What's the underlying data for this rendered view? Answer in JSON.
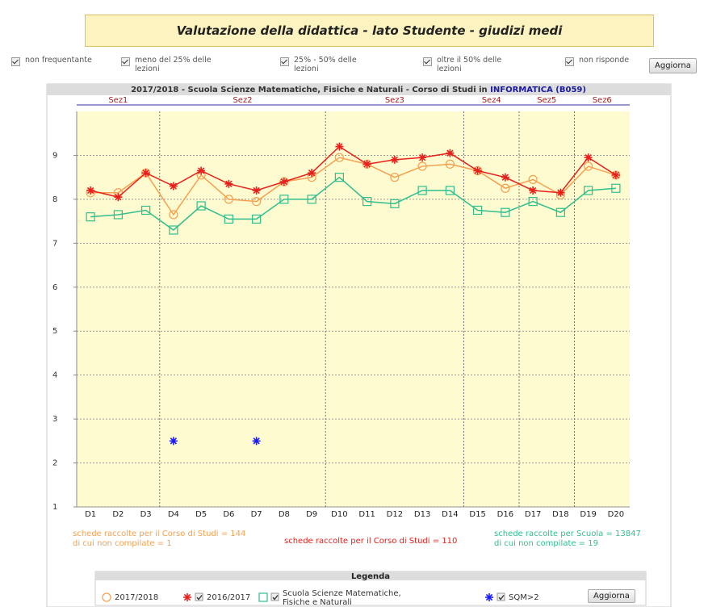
{
  "header": {
    "title": "Valutazione della didattica - lato Studente - giudizi medi"
  },
  "filters": [
    "non frequentante",
    "meno del 25% delle lezioni",
    "25% - 50% delle lezioni",
    "oltre il 50% delle lezioni",
    "non risponde"
  ],
  "update_button": "Aggiorna",
  "chart_data": {
    "type": "line",
    "title": "2017/2018 - Scuola Scienze Matematiche, Fisiche e Naturali - Corso di Studi in ",
    "title_highlight": "INFORMATICA (B059)",
    "sections": [
      {
        "label": "Sez1",
        "count": 3
      },
      {
        "label": "Sez2",
        "count": 6
      },
      {
        "label": "Sez3",
        "count": 5
      },
      {
        "label": "Sez4",
        "count": 2
      },
      {
        "label": "Sez5",
        "count": 2
      },
      {
        "label": "Sez6",
        "count": 2
      }
    ],
    "categories": [
      "D1",
      "D2",
      "D3",
      "D4",
      "D5",
      "D6",
      "D7",
      "D8",
      "D9",
      "D10",
      "D11",
      "D12",
      "D13",
      "D14",
      "D15",
      "D16",
      "D17",
      "D18",
      "D19",
      "D20"
    ],
    "ylim": [
      1,
      10
    ],
    "yticks": [
      1,
      2,
      3,
      4,
      5,
      6,
      7,
      8,
      9
    ],
    "grid": true,
    "series": [
      {
        "name": "2017/2018",
        "color": "#f5a050",
        "marker": "circle",
        "line": true,
        "values": [
          8.15,
          8.15,
          8.6,
          7.65,
          8.55,
          8.0,
          7.95,
          8.4,
          8.5,
          8.95,
          8.8,
          8.5,
          8.75,
          8.8,
          8.65,
          8.25,
          8.45,
          8.1,
          8.75,
          8.55
        ]
      },
      {
        "name": "2016/2017",
        "color": "#e8201c",
        "marker": "asterisk",
        "line": true,
        "values": [
          8.2,
          8.05,
          8.6,
          8.3,
          8.65,
          8.35,
          8.2,
          8.4,
          8.6,
          9.2,
          8.8,
          8.9,
          8.95,
          9.05,
          8.65,
          8.5,
          8.2,
          8.15,
          8.95,
          8.55
        ]
      },
      {
        "name": "Scuola Scienze Matematiche, Fisiche e Naturali",
        "color": "#2fbf8f",
        "marker": "square",
        "line": true,
        "values": [
          7.6,
          7.65,
          7.75,
          7.3,
          7.85,
          7.55,
          7.55,
          8.0,
          8.0,
          8.5,
          7.95,
          7.9,
          8.2,
          8.2,
          7.75,
          7.7,
          7.95,
          7.7,
          8.2,
          8.25
        ]
      },
      {
        "name": "SQM>2",
        "color": "#1a1aff",
        "marker": "asterisk",
        "line": false,
        "values": [
          null,
          null,
          null,
          2.5,
          null,
          null,
          2.5,
          null,
          null,
          null,
          null,
          null,
          null,
          null,
          null,
          null,
          null,
          null,
          null,
          null
        ]
      }
    ],
    "notes": [
      {
        "color": "#f5a050",
        "lines": [
          "schede raccolte per il Corso di Studi = 144",
          "di cui non compilate = 1"
        ]
      },
      {
        "color": "#e8201c",
        "lines": [
          "schede raccolte per il Corso di Studi = 110"
        ]
      },
      {
        "color": "#2fbf8f",
        "lines": [
          "schede raccolte per Scuola = 13847",
          "di cui non compilate = 19"
        ]
      }
    ],
    "legend_title": "Legenda"
  }
}
